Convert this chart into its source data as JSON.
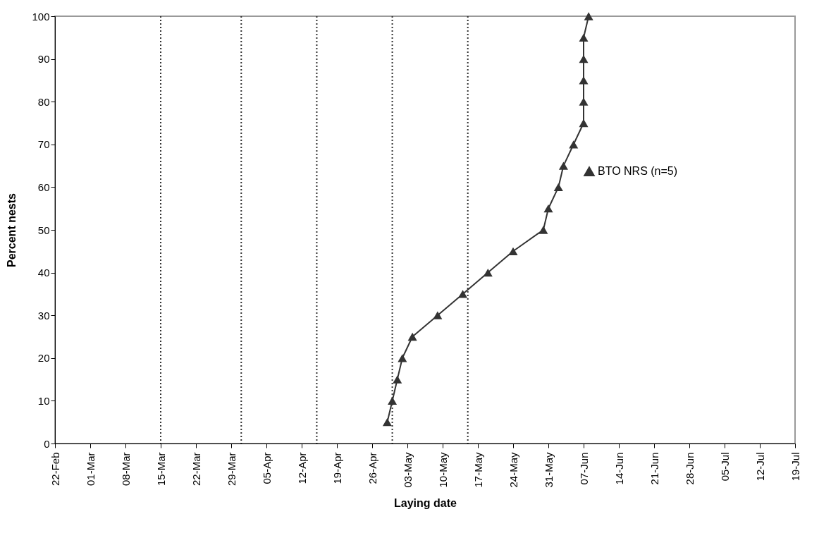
{
  "chart_data": {
    "type": "line",
    "xlabel": "Laying date",
    "ylabel": "Percent nests",
    "x": [
      "--04-29",
      "--04-30",
      "--05-01",
      "--05-02",
      "--05-04",
      "--05-09",
      "--05-14",
      "--05-19",
      "--05-24",
      "--05-30",
      "--05-31",
      "--06-02",
      "--06-03",
      "--06-05",
      "--06-07",
      "--06-07",
      "--06-07",
      "--06-07",
      "--06-07",
      "--06-08"
    ],
    "series": [
      {
        "name": "BTO NRS (n=5)",
        "color": "#333333",
        "values": [
          5,
          10,
          15,
          20,
          25,
          30,
          35,
          40,
          45,
          50,
          55,
          60,
          65,
          70,
          75,
          80,
          85,
          90,
          95,
          100
        ]
      }
    ],
    "xlim": [
      "--02-22",
      "--07-19"
    ],
    "xticks": [
      {
        "value": "--02-22",
        "label": "22-Feb"
      },
      {
        "value": "--03-01",
        "label": "01-Mar"
      },
      {
        "value": "--03-08",
        "label": "08-Mar"
      },
      {
        "value": "--03-15",
        "label": "15-Mar"
      },
      {
        "value": "--03-22",
        "label": "22-Mar"
      },
      {
        "value": "--03-29",
        "label": "29-Mar"
      },
      {
        "value": "--04-05",
        "label": "05-Apr"
      },
      {
        "value": "--04-12",
        "label": "12-Apr"
      },
      {
        "value": "--04-19",
        "label": "19-Apr"
      },
      {
        "value": "--04-26",
        "label": "26-Apr"
      },
      {
        "value": "--05-03",
        "label": "03-May"
      },
      {
        "value": "--05-10",
        "label": "10-May"
      },
      {
        "value": "--05-17",
        "label": "17-May"
      },
      {
        "value": "--05-24",
        "label": "24-May"
      },
      {
        "value": "--05-31",
        "label": "31-May"
      },
      {
        "value": "--06-07",
        "label": "07-Jun"
      },
      {
        "value": "--06-14",
        "label": "14-Jun"
      },
      {
        "value": "--06-21",
        "label": "21-Jun"
      },
      {
        "value": "--06-28",
        "label": "28-Jun"
      },
      {
        "value": "--07-05",
        "label": "05-Jul"
      },
      {
        "value": "--07-12",
        "label": "12-Jul"
      },
      {
        "value": "--07-19",
        "label": "19-Jul"
      }
    ],
    "ylim": [
      0,
      100
    ],
    "yticks": [
      0,
      10,
      20,
      30,
      40,
      50,
      60,
      70,
      80,
      90,
      100
    ],
    "ref_lines": [
      {
        "axis": "x",
        "value": "--03-15",
        "color": "#333333",
        "line_style": "dotted"
      },
      {
        "axis": "x",
        "value": "--03-31",
        "color": "#333333",
        "line_style": "dotted"
      },
      {
        "axis": "x",
        "value": "--04-15",
        "color": "#333333",
        "line_style": "dotted"
      },
      {
        "axis": "x",
        "value": "--04-30",
        "color": "#333333",
        "line_style": "dotted"
      },
      {
        "axis": "x",
        "value": "--05-15",
        "color": "#333333",
        "line_style": "dotted"
      }
    ],
    "grid": false,
    "legend": "right",
    "marker": "triangle",
    "line_style": "solid"
  }
}
